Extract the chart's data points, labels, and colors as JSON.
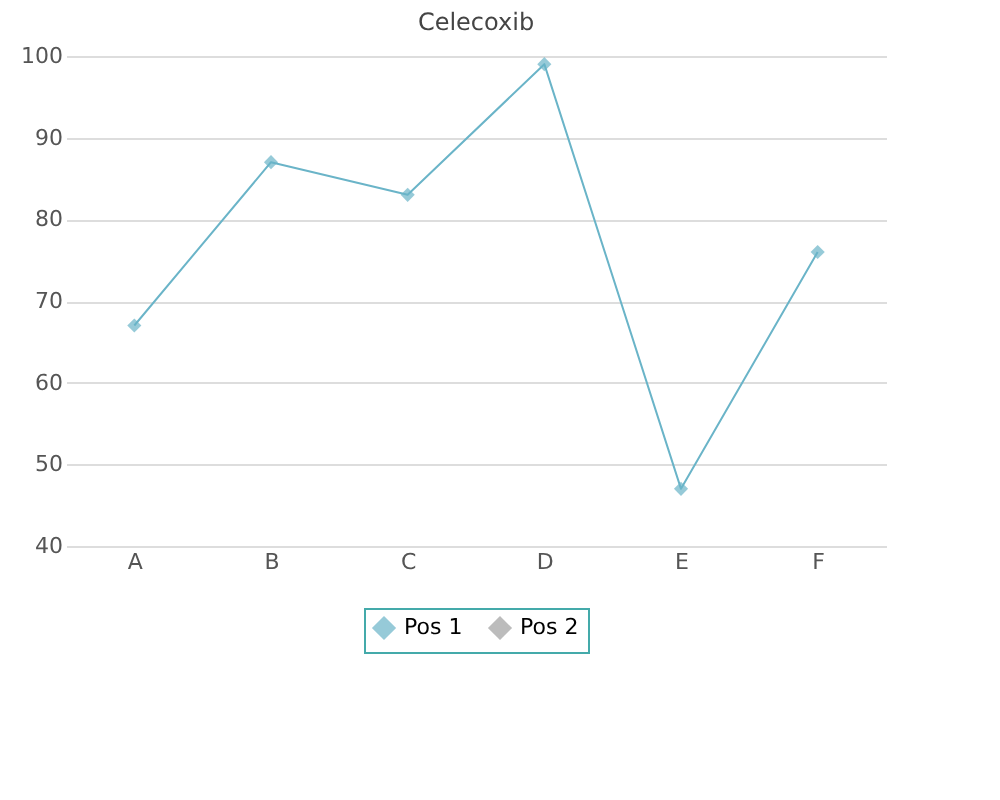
{
  "chart_data": {
    "type": "line",
    "title": "Celecoxib",
    "categories": [
      "A",
      "B",
      "C",
      "D",
      "E",
      "F"
    ],
    "series": [
      {
        "name": "Pos 1",
        "color": "#6ab4c8",
        "values": [
          67,
          87,
          83,
          99,
          47,
          76
        ]
      },
      {
        "name": "Pos 2",
        "color": "#a0a0a0",
        "values": [
          null,
          null,
          null,
          null,
          null,
          null
        ]
      }
    ],
    "ylim": [
      40,
      100
    ],
    "yticks": [
      40,
      50,
      60,
      70,
      80,
      90,
      100
    ],
    "grid": "y",
    "legend": "bottom",
    "marker": "diamond"
  }
}
